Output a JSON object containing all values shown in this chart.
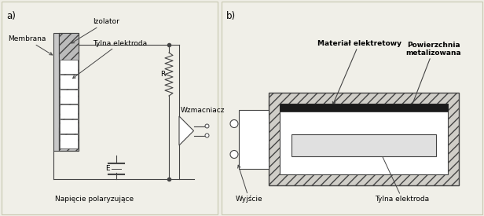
{
  "bg_color": "#eeede5",
  "panel_a_bg": "#f0efe8",
  "panel_b_bg": "#f0efe8",
  "text_color": "#000000",
  "label_a": "a)",
  "label_b": "b)",
  "membrana_label": "Membrana",
  "izolator_label": "Izolator",
  "tylna_label": "Tylna elektroda",
  "wzmacniacz_label": "Wzmacniacz",
  "napiecie_label": "Napięcie polaryzujące",
  "material_label": "Materiał elektretowy",
  "powierzchnia_label": "Powierzchnia\nmetalizowana",
  "tylna_b_label": "Tylna elektroda",
  "wyjscie_label": "Wyjście",
  "R_label": "R",
  "E_label": "E",
  "font_size": 6.5,
  "line_color": "#444444",
  "gray_light": "#cccccc",
  "gray_mid": "#aaaaaa",
  "gray_dark": "#888888",
  "hatch_dark": "#999999"
}
